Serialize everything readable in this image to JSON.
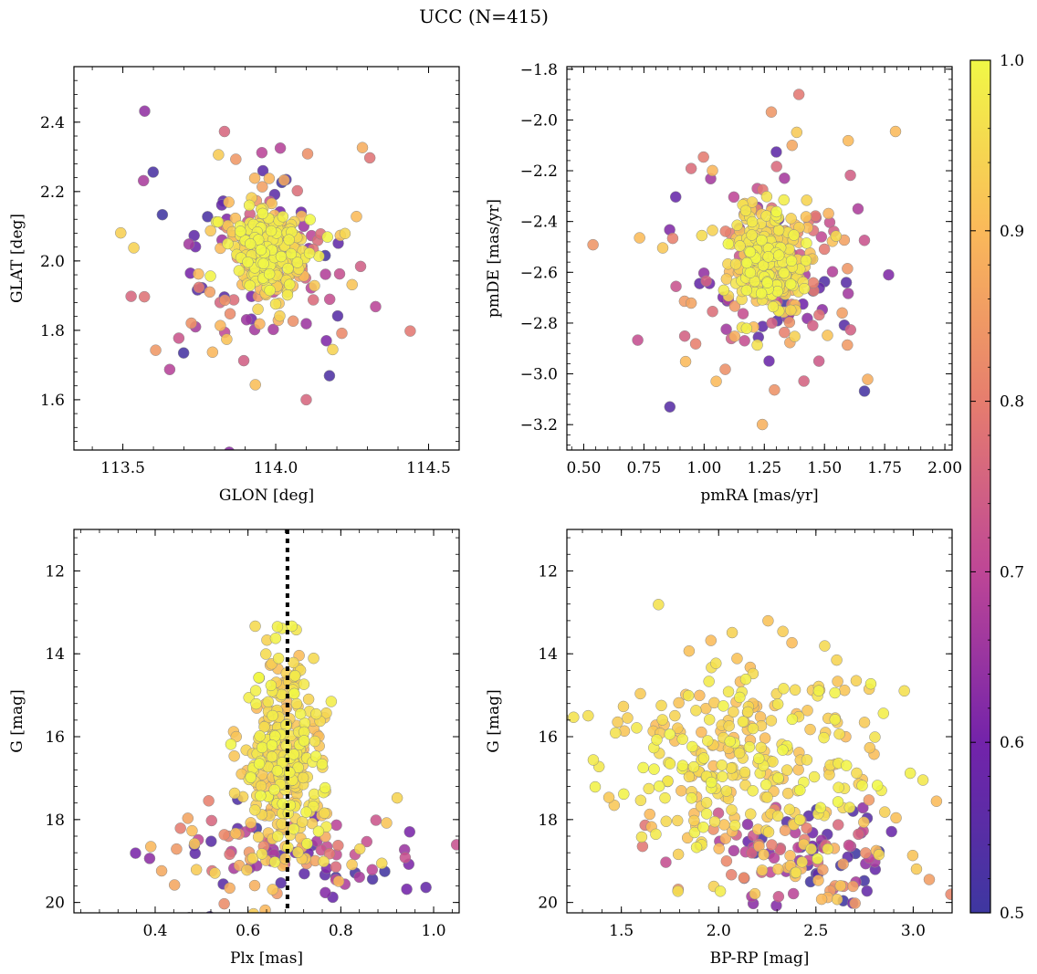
{
  "figure": {
    "title": "UCC (N=415)"
  },
  "colorbar": {
    "colormap": "plasma",
    "range": [
      0.5,
      1.0
    ],
    "ticks": [
      "0.5",
      "0.6",
      "0.7",
      "0.8",
      "0.9",
      "1.0"
    ]
  },
  "chart_data": [
    {
      "type": "scatter",
      "xlabel": "GLON [deg]",
      "ylabel": "GLAT [deg]",
      "xlim": [
        113.34,
        114.6
      ],
      "ylim": [
        1.455,
        2.56
      ],
      "xticks": [
        "113.5",
        "114.0",
        "114.5"
      ],
      "yticks": [
        "1.6",
        "1.8",
        "2.0",
        "2.2",
        "2.4"
      ],
      "cluster": {
        "x": 113.97,
        "y": 2.04,
        "sx": 0.06,
        "sy": 0.055
      },
      "field": {
        "x": 113.97,
        "y": 2.0,
        "sx": 0.18,
        "sy": 0.17
      }
    },
    {
      "type": "scatter",
      "xlabel": "pmRA [mas/yr]",
      "ylabel": "pmDE [mas/yr]",
      "xlim": [
        0.43,
        2.03
      ],
      "ylim": [
        -3.3,
        -1.79
      ],
      "xticks": [
        "0.50",
        "0.75",
        "1.00",
        "1.25",
        "1.50",
        "1.75",
        "2.00"
      ],
      "yticks": [
        "−3.2",
        "−3.0",
        "−2.8",
        "−2.6",
        "−2.4",
        "−2.2",
        "−2.0",
        "−1.8"
      ],
      "cluster": {
        "x": 1.27,
        "y": -2.56,
        "sx": 0.08,
        "sy": 0.1
      },
      "field": {
        "x": 1.25,
        "y": -2.55,
        "sx": 0.25,
        "sy": 0.25
      }
    },
    {
      "type": "scatter",
      "xlabel": "Plx [mas]",
      "ylabel": "G [mag]",
      "xlim": [
        0.225,
        1.055
      ],
      "ylim": [
        20.25,
        11.0
      ],
      "xticks": [
        "0.4",
        "0.6",
        "0.8",
        "1.0"
      ],
      "yticks": [
        "12",
        "14",
        "16",
        "18",
        "20"
      ],
      "vline": 0.685,
      "cluster": {
        "x": 0.675,
        "y": 16.4,
        "sx": 0.04,
        "sy": 1.3
      },
      "field": {
        "x": 0.66,
        "y": 18.9,
        "sx": 0.15,
        "sy": 0.7
      }
    },
    {
      "type": "scatter",
      "xlabel": "BP-RP [mag]",
      "ylabel": "G [mag]",
      "xlim": [
        1.22,
        3.2
      ],
      "ylim": [
        20.25,
        11.0
      ],
      "xticks": [
        "1.5",
        "2.0",
        "2.5",
        "3.0"
      ],
      "yticks": [
        "12",
        "14",
        "16",
        "18",
        "20"
      ],
      "cluster": {
        "x": 2.15,
        "y": 16.4,
        "sx": 0.35,
        "sy": 1.3
      },
      "field": {
        "x": 2.45,
        "y": 18.9,
        "sx": 0.3,
        "sy": 0.65
      }
    }
  ]
}
